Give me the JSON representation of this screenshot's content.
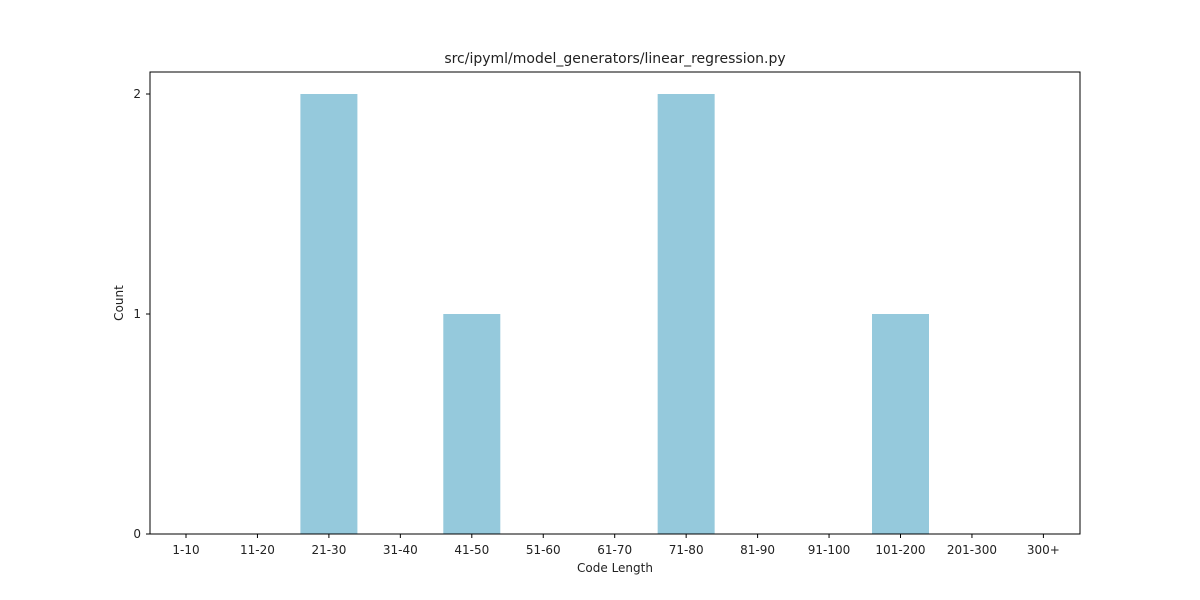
{
  "chart_data": {
    "type": "bar",
    "title": "src/ipyml/model_generators/linear_regression.py",
    "xlabel": "Code Length",
    "ylabel": "Count",
    "categories": [
      "1-10",
      "11-20",
      "21-30",
      "31-40",
      "41-50",
      "51-60",
      "61-70",
      "71-80",
      "81-90",
      "91-100",
      "101-200",
      "201-300",
      "300+"
    ],
    "values": [
      0,
      0,
      2,
      0,
      1,
      0,
      0,
      2,
      0,
      0,
      1,
      0,
      0
    ],
    "ylim": [
      0,
      2.1
    ],
    "yticks": [
      0,
      1,
      2
    ],
    "grid": false,
    "legend": "none",
    "bar_color": "#95c9dc"
  }
}
